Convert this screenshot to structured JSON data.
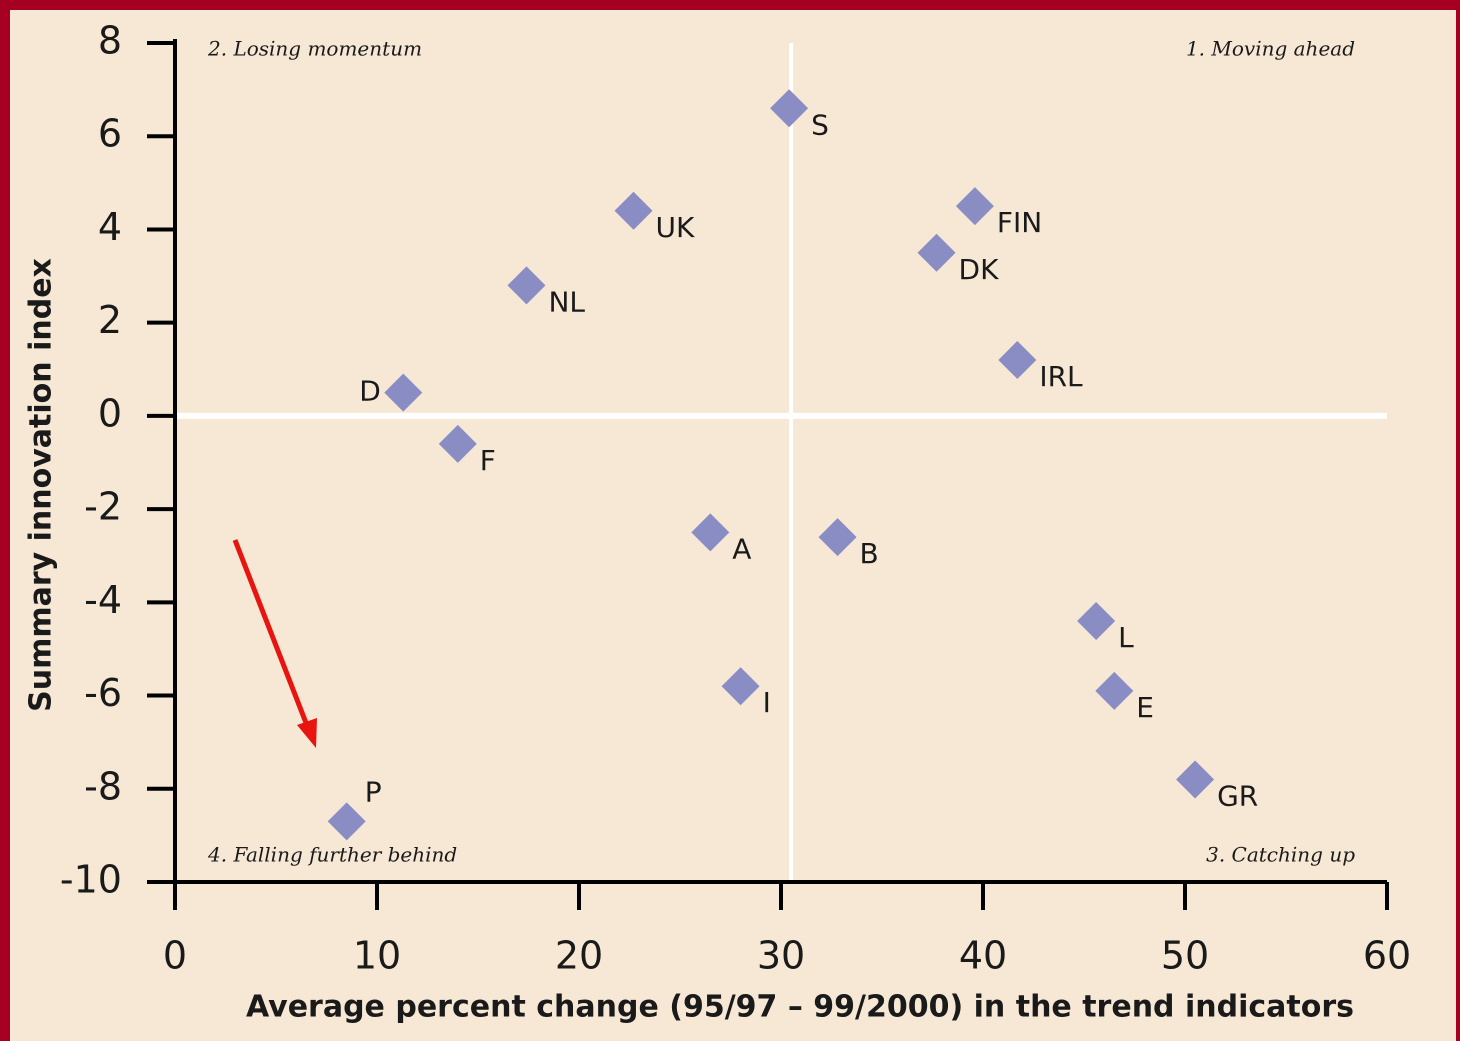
{
  "chart_data": {
    "type": "scatter",
    "xlabel": "Average percent change (95/97 – 99/2000) in the trend indicators",
    "ylabel": "Summary innovation index",
    "xlim": [
      0,
      60
    ],
    "ylim": [
      -10,
      8
    ],
    "xticks": [
      0,
      10,
      20,
      30,
      40,
      50,
      60
    ],
    "yticks": [
      -10,
      -8,
      -6,
      -4,
      -2,
      0,
      2,
      4,
      6,
      8
    ],
    "color": "#8a8cc4",
    "labels": [
      "S",
      "UK",
      "FIN",
      "DK",
      "NL",
      "D",
      "IRL",
      "F",
      "A",
      "B",
      "L",
      "I",
      "E",
      "GR",
      "P"
    ],
    "x": [
      30.4,
      22.7,
      39.6,
      37.7,
      17.4,
      11.3,
      41.7,
      14.0,
      26.5,
      32.8,
      45.6,
      28.0,
      46.5,
      50.5,
      8.5
    ],
    "values": [
      6.6,
      4.4,
      4.5,
      3.5,
      2.8,
      0.5,
      1.2,
      -0.6,
      -2.5,
      -2.6,
      -4.4,
      -5.8,
      -5.9,
      -7.8,
      -8.7
    ],
    "reference_lines": {
      "x": 30.5,
      "y": 0
    },
    "annotations": [
      "2. Losing momentum",
      "1. Moving ahead",
      "4. Falling further behind",
      "3. Catching up"
    ]
  }
}
